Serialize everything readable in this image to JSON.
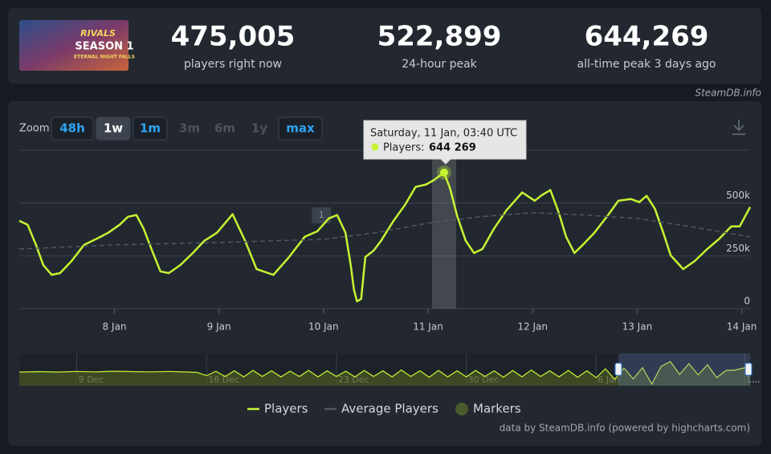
{
  "art": {
    "logo": "RIVALS",
    "title": "SEASON 1",
    "subtitle": "ETERNAL NIGHT FALLS"
  },
  "stats": [
    {
      "value": "475,005",
      "label": "players right now"
    },
    {
      "value": "522,899",
      "label": "24-hour peak"
    },
    {
      "value": "644,269",
      "label": "all-time peak 3 days ago"
    }
  ],
  "brand": "SteamDB.info",
  "zoom": {
    "label": "Zoom",
    "buttons": [
      {
        "label": "48h",
        "state": "link"
      },
      {
        "label": "1w",
        "state": "selected"
      },
      {
        "label": "1m",
        "state": "link"
      },
      {
        "label": "3m",
        "state": "disabled"
      },
      {
        "label": "6m",
        "state": "disabled"
      },
      {
        "label": "1y",
        "state": "disabled"
      },
      {
        "label": "max",
        "state": "link"
      }
    ]
  },
  "credits": "data by SteamDB.info (powered by highcharts.com)",
  "chart_data": [
    {
      "type": "line",
      "xlim": [
        7.09,
        14.08
      ],
      "xticks": [
        {
          "value": 8,
          "label": "8 Jan"
        },
        {
          "value": 9,
          "label": "9 Jan"
        },
        {
          "value": 10,
          "label": "10 Jan"
        },
        {
          "value": 11,
          "label": "11 Jan"
        },
        {
          "value": 12,
          "label": "12 Jan"
        },
        {
          "value": 13,
          "label": "13 Jan"
        },
        {
          "value": 14,
          "label": "14 Jan"
        }
      ],
      "ylim": [
        0,
        750000
      ],
      "yticks": [
        0,
        {
          "value": 250000,
          "label": "250k"
        },
        {
          "value": 500000,
          "label": "500k"
        }
      ],
      "grid": true,
      "series": [
        {
          "name": "Players",
          "color": "#c6f432",
          "dashed": false,
          "x": [
            7.09,
            7.17,
            7.25,
            7.32,
            7.4,
            7.48,
            7.59,
            7.71,
            7.82,
            7.94,
            8.05,
            8.13,
            8.21,
            8.28,
            8.36,
            8.44,
            8.52,
            8.63,
            8.75,
            8.86,
            8.98,
            9.13,
            9.25,
            9.36,
            9.52,
            9.67,
            9.82,
            9.94,
            10.05,
            10.13,
            10.21,
            10.26,
            10.29,
            10.32,
            10.36,
            10.4,
            10.48,
            10.55,
            10.67,
            10.78,
            10.88,
            10.98,
            11.05,
            11.153,
            11.21,
            11.28,
            11.36,
            11.44,
            11.52,
            11.63,
            11.75,
            11.9,
            12.02,
            12.09,
            12.17,
            12.25,
            12.32,
            12.4,
            12.48,
            12.59,
            12.71,
            12.82,
            12.94,
            13.02,
            13.09,
            13.17,
            13.25,
            13.32,
            13.44,
            13.55,
            13.67,
            13.78,
            13.9,
            13.98,
            14.08
          ],
          "values": [
            416000,
            397000,
            302000,
            206000,
            160000,
            168000,
            225000,
            302000,
            328000,
            359000,
            397000,
            435000,
            443000,
            378000,
            275000,
            176000,
            168000,
            206000,
            263000,
            321000,
            359000,
            447000,
            321000,
            187000,
            160000,
            244000,
            340000,
            366000,
            427000,
            443000,
            359000,
            206000,
            92000,
            34000,
            46000,
            244000,
            275000,
            321000,
            416000,
            492000,
            576000,
            588000,
            607000,
            644269,
            569000,
            435000,
            321000,
            263000,
            282000,
            378000,
            466000,
            550000,
            511000,
            538000,
            561000,
            454000,
            340000,
            263000,
            302000,
            359000,
            435000,
            511000,
            519000,
            504000,
            534000,
            473000,
            359000,
            252000,
            187000,
            225000,
            282000,
            328000,
            389000,
            389000,
            481000
          ]
        },
        {
          "name": "Average Players",
          "color": "#4f5663",
          "dashed": true,
          "x": [
            7.09,
            8,
            9,
            10,
            10.5,
            11,
            11.5,
            12,
            12.5,
            13,
            13.5,
            14.08
          ],
          "values": [
            282000,
            302000,
            313000,
            328000,
            359000,
            405000,
            435000,
            454000,
            443000,
            427000,
            389000,
            340000
          ]
        }
      ],
      "markers": {
        "name": "Markers",
        "color": "#4b5a2c",
        "points": [
          {
            "x": 9.98,
            "label": "1"
          }
        ]
      },
      "tooltip": {
        "title": "Saturday, 11 Jan, 03:40 UTC",
        "label": "Players:",
        "value_label": "644 269",
        "x": 11.153,
        "value": 644269
      }
    },
    {
      "type": "area",
      "color": "#c6f432",
      "xlim": [
        5.9,
        45.3
      ],
      "ylim": [
        0,
        800000
      ],
      "xticks": [
        {
          "value": 9,
          "label": "9 Dec"
        },
        {
          "value": 16,
          "label": "16 Dec"
        },
        {
          "value": 23,
          "label": "23 Dec"
        },
        {
          "value": 30,
          "label": "30 Dec"
        },
        {
          "value": 37,
          "label": "6 Jan"
        },
        {
          "value": 45,
          "label": "1..."
        }
      ],
      "x": [
        5.9,
        7,
        8,
        9,
        10,
        11,
        12,
        13,
        14,
        15,
        15.5,
        16,
        16.5,
        17,
        17.5,
        18,
        18.5,
        19,
        19.5,
        20,
        20.5,
        21,
        21.5,
        22,
        22.5,
        23,
        23.5,
        24,
        24.5,
        25,
        25.5,
        26,
        26.5,
        27,
        27.5,
        28,
        28.5,
        29,
        29.5,
        30,
        30.5,
        31,
        31.5,
        32,
        32.5,
        33,
        33.5,
        34,
        34.5,
        35,
        35.5,
        36,
        36.5,
        37,
        37.5,
        38,
        38.5,
        39,
        39.5,
        40,
        40.5,
        41,
        41.5,
        42,
        42.5,
        43,
        43.5,
        44,
        44.5,
        45.3
      ],
      "values": [
        340000,
        350000,
        340000,
        355000,
        345000,
        360000,
        350000,
        345000,
        355000,
        340000,
        330000,
        250000,
        360000,
        230000,
        370000,
        220000,
        380000,
        230000,
        370000,
        220000,
        360000,
        230000,
        380000,
        220000,
        370000,
        230000,
        360000,
        220000,
        380000,
        230000,
        370000,
        220000,
        390000,
        230000,
        370000,
        210000,
        380000,
        220000,
        370000,
        220000,
        380000,
        230000,
        370000,
        210000,
        380000,
        220000,
        390000,
        230000,
        370000,
        220000,
        380000,
        210000,
        370000,
        200000,
        420000,
        160000,
        440000,
        170000,
        450000,
        40000,
        480000,
        600000,
        280000,
        550000,
        270000,
        520000,
        200000,
        380000,
        390000,
        480000
      ]
    }
  ]
}
